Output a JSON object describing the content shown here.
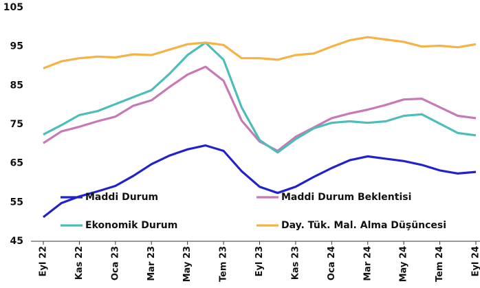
{
  "chart_data": {
    "type": "line",
    "categories": [
      "Eyl 22",
      null,
      "Kas 22",
      null,
      "Oca 23",
      null,
      "Mar 23",
      null,
      "May 23",
      null,
      "Tem 23",
      null,
      "Eyl 23",
      null,
      "Kas 23",
      null,
      "Oca 24",
      null,
      "Mar 24",
      null,
      "May 24",
      null,
      "Tem 24",
      null,
      "Eyl 24"
    ],
    "series": [
      {
        "name": "Maddi Durum",
        "color": "#2222cc",
        "values": [
          51.2,
          54.8,
          56.5,
          57.8,
          59.2,
          61.8,
          64.8,
          67.0,
          68.6,
          69.6,
          68.2,
          63.0,
          59.0,
          57.4,
          59.0,
          61.5,
          63.8,
          65.8,
          66.8,
          66.2,
          65.6,
          64.6,
          63.2,
          62.4,
          62.8
        ]
      },
      {
        "name": "Maddi Durum Beklentisi",
        "color": "#c978b6",
        "values": [
          70.2,
          73.2,
          74.4,
          75.8,
          77.0,
          79.8,
          81.2,
          84.6,
          87.8,
          89.8,
          86.2,
          76.0,
          70.6,
          68.2,
          71.8,
          74.2,
          76.6,
          77.8,
          78.8,
          80.0,
          81.4,
          81.6,
          79.4,
          77.2,
          76.6
        ]
      },
      {
        "name": "Ekonomik Durum",
        "color": "#4dbdb9",
        "values": [
          72.4,
          74.8,
          77.4,
          78.4,
          80.2,
          82.0,
          83.8,
          88.0,
          92.8,
          96.0,
          91.6,
          79.4,
          71.0,
          67.8,
          71.2,
          74.0,
          75.4,
          75.8,
          75.4,
          75.8,
          77.2,
          77.6,
          75.2,
          72.8,
          72.2
        ]
      },
      {
        "name": "Day. Tük. Mal. Alma Düşüncesi",
        "color": "#f5b245",
        "values": [
          89.4,
          91.2,
          92.0,
          92.4,
          92.2,
          93.0,
          92.8,
          94.2,
          95.6,
          96.0,
          95.4,
          92.0,
          92.0,
          91.6,
          92.8,
          93.2,
          95.0,
          96.6,
          97.4,
          96.8,
          96.2,
          95.0,
          95.2,
          94.8,
          95.6
        ]
      }
    ],
    "ylim": [
      45,
      105
    ],
    "yticks": [
      45,
      55,
      65,
      75,
      85,
      95,
      105
    ],
    "grid": false
  }
}
